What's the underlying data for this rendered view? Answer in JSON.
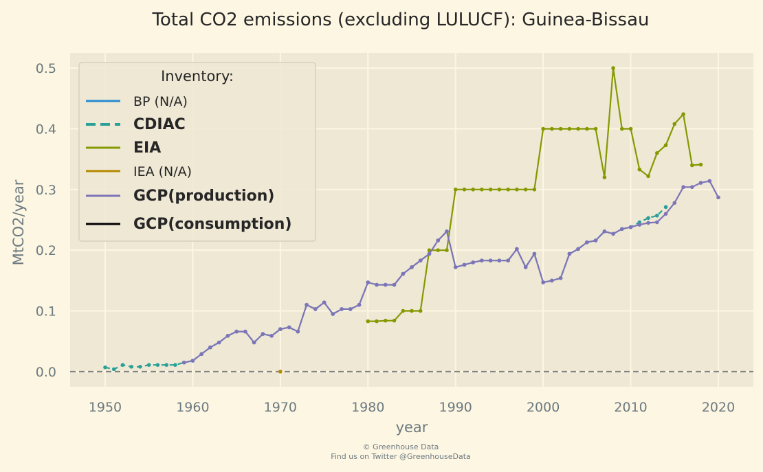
{
  "chart_data": {
    "type": "line",
    "title": "Total CO2 emissions (excluding LULUCF): Guinea-Bissau",
    "xlabel": "year",
    "ylabel": "MtCO2/year",
    "xlim": [
      1946,
      2024
    ],
    "ylim": [
      -0.025,
      0.525
    ],
    "x_ticks": [
      1950,
      1960,
      1970,
      1980,
      1990,
      2000,
      2010,
      2020
    ],
    "y_ticks": [
      0.0,
      0.1,
      0.2,
      0.3,
      0.4,
      0.5
    ],
    "y_tick_labels": [
      "0.0",
      "0.1",
      "0.2",
      "0.3",
      "0.4",
      "0.5"
    ],
    "grid": true,
    "background_color": "#fdf6e3",
    "plot_background_color": "#eee8d5",
    "zero_line": {
      "y": 0,
      "color": "#808080",
      "style": "dashed"
    },
    "legend": {
      "title": "Inventory:",
      "placement": "upper-left",
      "entries": [
        {
          "label": "BP (N/A)",
          "color": "#268bd2",
          "style": "solid",
          "bold": false
        },
        {
          "label": "CDIAC",
          "color": "#2aa198",
          "style": "dashed",
          "bold": true
        },
        {
          "label": "EIA",
          "color": "#859900",
          "style": "solid",
          "bold": true
        },
        {
          "label": "IEA (N/A)",
          "color": "#b58900",
          "style": "solid",
          "bold": false
        },
        {
          "label": "GCP(production)",
          "color": "#7e74b8",
          "style": "solid",
          "bold": true
        },
        {
          "label": "GCP(consumption)",
          "color": "#000000",
          "style": "solid",
          "bold": true
        }
      ]
    },
    "series": [
      {
        "name": "CDIAC",
        "color": "#2aa198",
        "style": "dashed",
        "x": [
          1950,
          1951,
          1952,
          1953,
          1954,
          1955,
          1956,
          1957,
          1958,
          1959,
          1960,
          1961,
          1962,
          1963,
          1964,
          1965,
          1966,
          1967,
          1968,
          1969,
          1970,
          1971,
          1972,
          1973,
          1974,
          1975,
          1976,
          1977,
          1978,
          1979,
          1980,
          1981,
          1982,
          1983,
          1984,
          1985,
          1986,
          1987,
          1988,
          1989,
          1990,
          1991,
          1992,
          1993,
          1994,
          1995,
          1996,
          1997,
          1998,
          1999,
          2000,
          2001,
          2002,
          2003,
          2004,
          2005,
          2006,
          2007,
          2008,
          2009,
          2010,
          2011,
          2012,
          2013,
          2014
        ],
        "values": [
          0.007,
          0.004,
          0.011,
          0.008,
          0.008,
          0.011,
          0.011,
          0.011,
          0.011,
          0.015,
          0.018,
          0.029,
          0.04,
          0.048,
          0.059,
          0.066,
          0.066,
          0.048,
          0.062,
          0.059,
          0.07,
          0.073,
          0.066,
          0.11,
          0.103,
          0.114,
          0.095,
          0.103,
          0.103,
          0.11,
          0.147,
          0.143,
          0.143,
          0.143,
          0.161,
          0.172,
          0.183,
          0.194,
          0.216,
          0.231,
          0.172,
          0.176,
          0.18,
          0.183,
          0.183,
          0.183,
          0.183,
          0.202,
          0.172,
          0.194,
          0.147,
          0.15,
          0.154,
          0.194,
          0.202,
          0.213,
          0.216,
          0.231,
          0.227,
          0.235,
          0.238,
          0.246,
          0.253,
          0.257,
          0.271
        ]
      },
      {
        "name": "EIA",
        "color": "#859900",
        "style": "solid",
        "x": [
          1980,
          1981,
          1982,
          1983,
          1984,
          1985,
          1986,
          1987,
          1988,
          1989,
          1990,
          1991,
          1992,
          1993,
          1994,
          1995,
          1996,
          1997,
          1998,
          1999,
          2000,
          2001,
          2002,
          2003,
          2004,
          2005,
          2006,
          2007,
          2008,
          2009,
          2010,
          2011,
          2012,
          2013,
          2014,
          2015,
          2016,
          2017,
          2018
        ],
        "values": [
          0.083,
          0.083,
          0.084,
          0.084,
          0.1,
          0.1,
          0.1,
          0.2,
          0.2,
          0.2,
          0.3,
          0.3,
          0.3,
          0.3,
          0.3,
          0.3,
          0.3,
          0.3,
          0.3,
          0.3,
          0.4,
          0.4,
          0.4,
          0.4,
          0.4,
          0.4,
          0.4,
          0.32,
          0.5,
          0.4,
          0.4,
          0.333,
          0.322,
          0.36,
          0.373,
          0.408,
          0.424,
          0.34,
          0.341
        ]
      },
      {
        "name": "IEA (N/A)",
        "color": "#b58900",
        "style": "solid",
        "x": [
          1970
        ],
        "values": [
          0.0
        ]
      },
      {
        "name": "GCP(production)",
        "color": "#7e74b8",
        "style": "solid",
        "x": [
          1959,
          1960,
          1961,
          1962,
          1963,
          1964,
          1965,
          1966,
          1967,
          1968,
          1969,
          1970,
          1971,
          1972,
          1973,
          1974,
          1975,
          1976,
          1977,
          1978,
          1979,
          1980,
          1981,
          1982,
          1983,
          1984,
          1985,
          1986,
          1987,
          1988,
          1989,
          1990,
          1991,
          1992,
          1993,
          1994,
          1995,
          1996,
          1997,
          1998,
          1999,
          2000,
          2001,
          2002,
          2003,
          2004,
          2005,
          2006,
          2007,
          2008,
          2009,
          2010,
          2011,
          2012,
          2013,
          2014,
          2015,
          2016,
          2017,
          2018,
          2019,
          2020
        ],
        "values": [
          0.015,
          0.018,
          0.029,
          0.04,
          0.048,
          0.059,
          0.066,
          0.066,
          0.048,
          0.062,
          0.059,
          0.07,
          0.073,
          0.066,
          0.11,
          0.103,
          0.114,
          0.095,
          0.103,
          0.103,
          0.11,
          0.147,
          0.143,
          0.143,
          0.143,
          0.161,
          0.172,
          0.183,
          0.194,
          0.216,
          0.231,
          0.172,
          0.176,
          0.18,
          0.183,
          0.183,
          0.183,
          0.183,
          0.202,
          0.172,
          0.194,
          0.147,
          0.15,
          0.154,
          0.194,
          0.202,
          0.213,
          0.216,
          0.231,
          0.227,
          0.235,
          0.238,
          0.242,
          0.245,
          0.246,
          0.26,
          0.278,
          0.304,
          0.304,
          0.311,
          0.314,
          0.287
        ]
      }
    ]
  },
  "footer": {
    "line1": "© Greenhouse Data",
    "line2": "Find us on Twitter @GreenhouseData"
  }
}
